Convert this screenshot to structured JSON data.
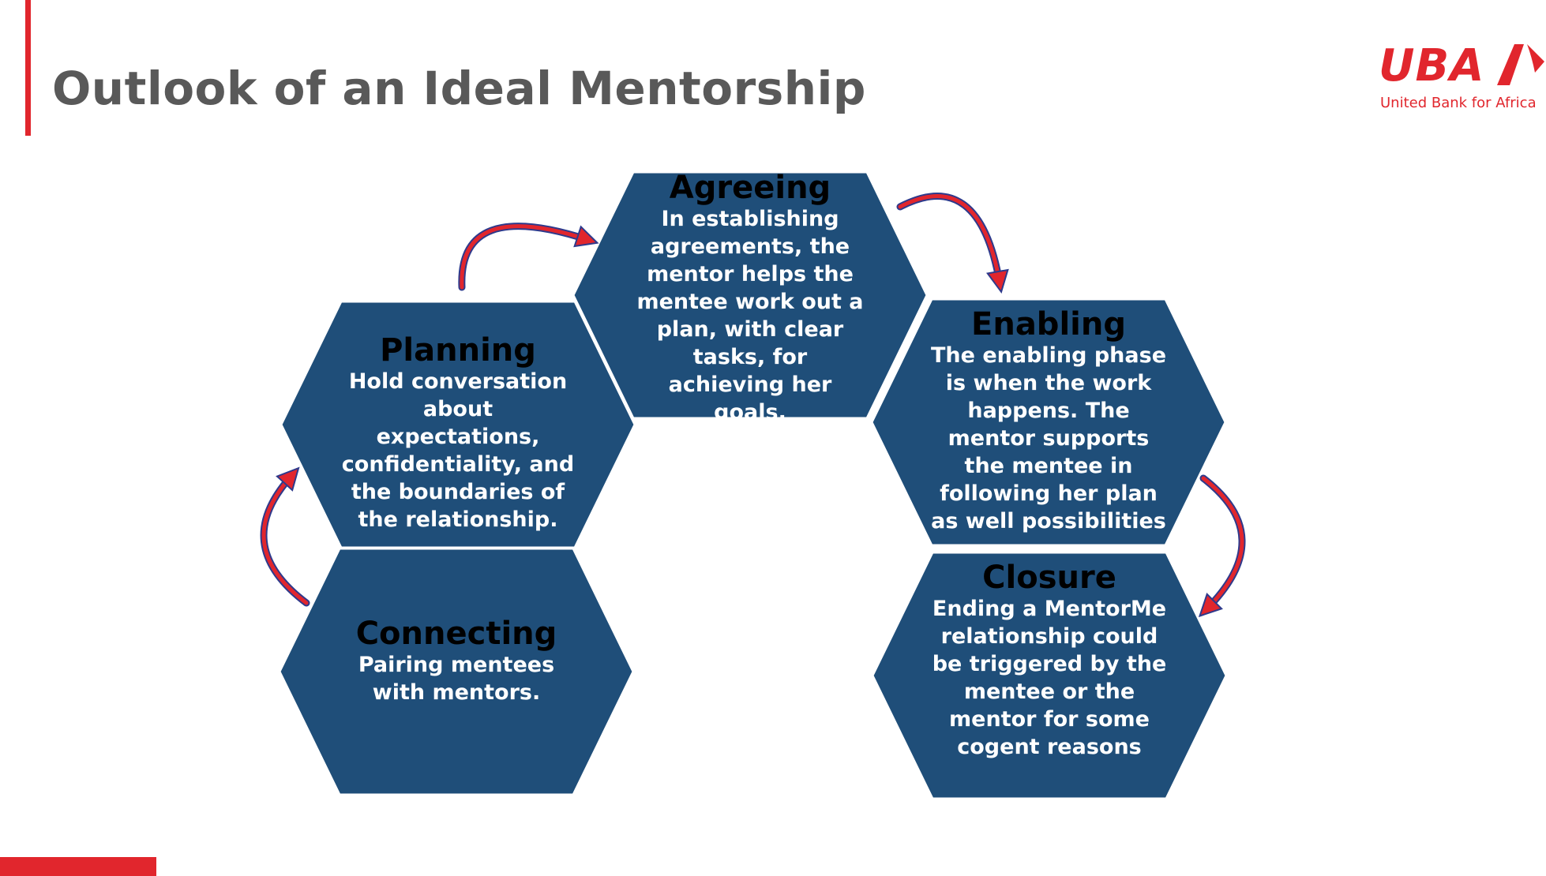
{
  "slide": {
    "title": "Outlook of an Ideal Mentorship"
  },
  "logo": {
    "wordmark": "UBA",
    "tagline": "United Bank for Africa"
  },
  "colors": {
    "accent": "#e1262d",
    "hexagon_fill": "#1f4e79",
    "title_text": "#595959",
    "arrow_fill": "#e1262d",
    "arrow_outline": "#2e3a8c"
  },
  "stages": [
    {
      "id": "connecting",
      "title": "Connecting",
      "body": "Pairing mentees with mentors."
    },
    {
      "id": "planning",
      "title": "Planning",
      "body": "Hold conversation about expectations, confidentiality, and the boundaries of the relationship."
    },
    {
      "id": "agreeing",
      "title": "Agreeing",
      "body": "In establishing agreements, the mentor helps the mentee work out a plan, with clear tasks, for achieving her goals."
    },
    {
      "id": "enabling",
      "title": "Enabling",
      "body": "The enabling phase is when the work happens. The mentor supports the mentee in following her plan as well possibilities"
    },
    {
      "id": "closure",
      "title": "Closure",
      "body": "Ending a MentorMe relationship could be triggered by the mentee or the mentor for some cogent reasons"
    }
  ],
  "flow": [
    {
      "from": "connecting",
      "to": "planning"
    },
    {
      "from": "planning",
      "to": "agreeing"
    },
    {
      "from": "agreeing",
      "to": "enabling"
    },
    {
      "from": "enabling",
      "to": "closure"
    }
  ]
}
